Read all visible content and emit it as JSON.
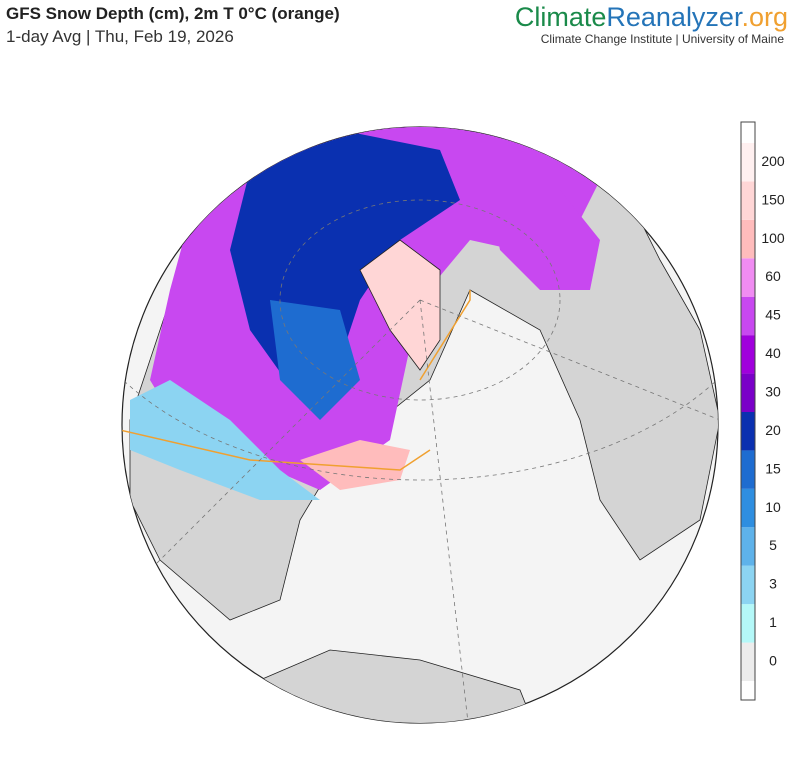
{
  "header": {
    "title": "GFS Snow Depth (cm), 2m T 0°C (orange)",
    "subtitle": "1-day Avg | Thu, Feb 19, 2026"
  },
  "brand": {
    "parts": [
      {
        "text": "Climate",
        "color": "#1a8a4a"
      },
      {
        "text": "Reanalyzer",
        "color": "#2474b8"
      },
      {
        "text": ".org",
        "color": "#f0a030"
      }
    ],
    "tagline": "Climate Change Institute | University of Maine"
  },
  "colorbar": {
    "ticks": [
      0,
      1,
      3,
      5,
      10,
      15,
      20,
      30,
      40,
      45,
      60,
      100,
      150,
      200
    ],
    "colors": [
      "#ececec",
      "#b4f8f8",
      "#8cd4f2",
      "#5eb2ea",
      "#2e8ee0",
      "#1e6cd0",
      "#0a30b0",
      "#7a00c8",
      "#a000dc",
      "#c848f0",
      "#f08cf2",
      "#ffbcbc",
      "#ffd6d6",
      "#fff0f0"
    ]
  }
}
